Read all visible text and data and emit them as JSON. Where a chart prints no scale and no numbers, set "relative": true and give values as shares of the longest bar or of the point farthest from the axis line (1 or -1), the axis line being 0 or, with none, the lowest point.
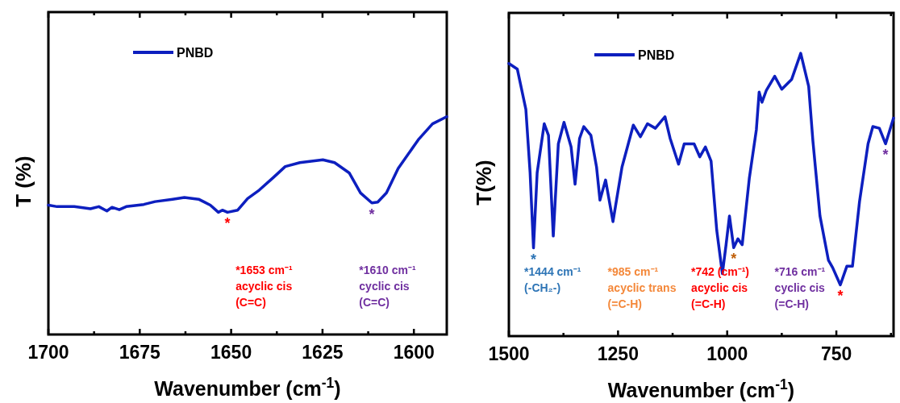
{
  "chart_data": [
    {
      "type": "line",
      "ylabel": "T (%)",
      "xlabel": "Wavenumber (cm$^{-1}$)",
      "relative": true,
      "legend": "top left",
      "xlim": [
        1700,
        1591
      ],
      "xticks": [
        1700,
        {
          "value": 1687.5,
          "label": null
        },
        1675,
        {
          "value": 1662.5,
          "label": null
        },
        1650,
        {
          "value": 1637.5,
          "label": null
        },
        1625,
        {
          "value": 1612.5,
          "label": null
        },
        1600
      ],
      "series": [
        {
          "name": "PNBD",
          "color": "#0d1fbf",
          "x": [
            1700,
            1697.6,
            1692.9,
            1688.5,
            1686.2,
            1684.0,
            1682.6,
            1680.6,
            1678.7,
            1673.9,
            1670.8,
            1666.0,
            1662.8,
            1658.9,
            1655.7,
            1653.5,
            1652.4,
            1651.0,
            1648.2,
            1645.5,
            1642.3,
            1638.3,
            1635.2,
            1631.2,
            1624.9,
            1621.7,
            1617.7,
            1614.6,
            1611.5,
            1609.9,
            1607.5,
            1604.3,
            1598.8,
            1594.9,
            1591
          ],
          "values": [
            0.594,
            0.587,
            0.587,
            0.577,
            0.587,
            0.567,
            0.584,
            0.573,
            0.587,
            0.597,
            0.61,
            0.621,
            0.629,
            0.621,
            0.594,
            0.561,
            0.571,
            0.561,
            0.571,
            0.624,
            0.663,
            0.723,
            0.771,
            0.789,
            0.802,
            0.789,
            0.742,
            0.65,
            0.604,
            0.608,
            0.65,
            0.762,
            0.894,
            0.967,
            1.0
          ]
        }
      ],
      "annotations": [
        {
          "text": "*",
          "x": 1651.0,
          "y": 0.561
        },
        {
          "text": "*",
          "x": 1611.5,
          "y": 0.604
        },
        "*1653 cm⁻¹\nacyclic cis\n(C=C)",
        "*1610 cm⁻¹\ncyclic cis\n(C=C)"
      ]
    },
    {
      "type": "line",
      "ylabel": "T(%)",
      "xlabel": "Wavenumber (cm$^{-1}$)",
      "relative": true,
      "legend": "top left",
      "xlim": [
        1500,
        619
      ],
      "xticks": [
        1500,
        {
          "value": 1375,
          "label": null
        },
        1250,
        {
          "value": 1125,
          "label": null
        },
        1000,
        {
          "value": 875,
          "label": null
        },
        750,
        {
          "value": 625,
          "label": null
        }
      ],
      "series": [
        {
          "name": "PNBD",
          "color": "#0d1fbf",
          "x": [
            1500,
            1480.6,
            1461.1,
            1451.4,
            1443.6,
            1435.2,
            1419.0,
            1409.3,
            1398.3,
            1386.7,
            1373.7,
            1357.5,
            1348.4,
            1338.1,
            1328.4,
            1312.2,
            1299.2,
            1291.4,
            1278.5,
            1261.6,
            1240.9,
            1215.0,
            1198.8,
            1182.6,
            1164.5,
            1142.5,
            1130.8,
            1111.4,
            1098.4,
            1075.8,
            1062.8,
            1049.9,
            1036.9,
            1023.9,
            1011.0,
            1002.6,
            994.8,
            985.1,
            975.4,
            965.6,
            949.4,
            933.2,
            926.8,
            920.3,
            910.6,
            891.2,
            875.0,
            852.3,
            831.6,
            813.4,
            803.7,
            787.5,
            768.1,
            758.4,
            740.9,
            726.0,
            713.1,
            696.9,
            677.4,
            666.4,
            651.5,
            637.3,
            619.1
          ],
          "values": [
            0.964,
            0.944,
            0.802,
            0.578,
            0.312,
            0.578,
            0.751,
            0.71,
            0.354,
            0.68,
            0.756,
            0.669,
            0.537,
            0.699,
            0.741,
            0.71,
            0.598,
            0.481,
            0.552,
            0.405,
            0.598,
            0.746,
            0.705,
            0.751,
            0.735,
            0.776,
            0.7,
            0.608,
            0.68,
            0.68,
            0.634,
            0.669,
            0.619,
            0.374,
            0.221,
            0.323,
            0.425,
            0.313,
            0.344,
            0.323,
            0.557,
            0.73,
            0.863,
            0.827,
            0.868,
            0.919,
            0.873,
            0.908,
            1.0,
            0.883,
            0.69,
            0.425,
            0.268,
            0.242,
            0.181,
            0.247,
            0.247,
            0.476,
            0.68,
            0.741,
            0.735,
            0.68,
            0.771
          ]
        }
      ],
      "annotations": [
        {
          "text": "*",
          "x": 1443.6,
          "y": 0.312
        },
        {
          "text": "*",
          "x": 985.1,
          "y": 0.313
        },
        {
          "text": "*",
          "x": 740.9,
          "y": 0.181
        },
        {
          "text": "*",
          "x": 637.3,
          "y": 0.68
        },
        "*1444 cm⁻¹\n(-CH₂-)",
        "*985 cm⁻¹\nacyclic trans\n(=C-H)",
        "*742 (cm⁻¹)\nacyclic cis\n(=C-H)",
        "*716 cm⁻¹\ncyclic cis\n(=C-H)"
      ]
    }
  ]
}
